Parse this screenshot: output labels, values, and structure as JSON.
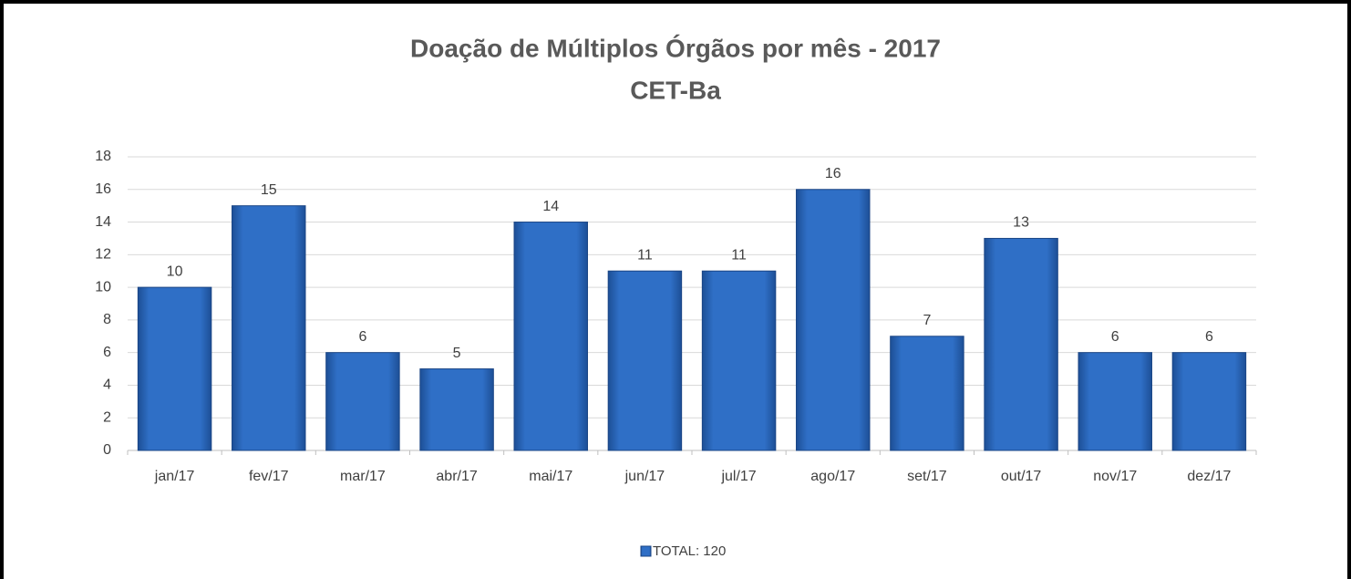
{
  "chart_data": {
    "type": "bar",
    "title": "Doação de Múltiplos Órgãos por mês - 2017",
    "subtitle": "CET-Ba",
    "categories": [
      "jan/17",
      "fev/17",
      "mar/17",
      "abr/17",
      "mai/17",
      "jun/17",
      "jul/17",
      "ago/17",
      "set/17",
      "out/17",
      "nov/17",
      "dez/17"
    ],
    "series": [
      {
        "name": "TOTAL: 120",
        "color": "#2f6fc6",
        "values": [
          10,
          15,
          6,
          5,
          14,
          11,
          11,
          16,
          7,
          13,
          6,
          6
        ]
      }
    ],
    "ylim": [
      0,
      18
    ],
    "yticks": [
      0,
      2,
      4,
      6,
      8,
      10,
      12,
      14,
      16,
      18
    ],
    "grid": true,
    "legend": "bottom",
    "data_labels": true
  }
}
